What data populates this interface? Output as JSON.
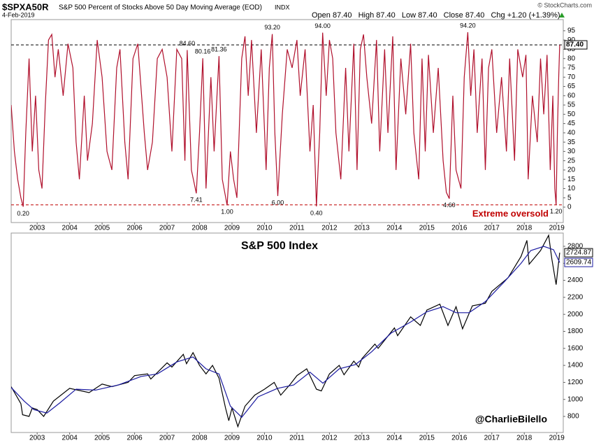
{
  "header": {
    "symbol": "$SPXA50R",
    "description": "S&P 500 Percent of Stocks Above 50 Day Moving Average (EOD)",
    "exchange": "INDX",
    "date": "4-Feb-2019",
    "quote": [
      "Open 87.40",
      "High 87.40",
      "Low 87.40",
      "Close 87.40",
      "Chg +1.20 (+1.39%)"
    ],
    "source": "© StockCharts.com"
  },
  "chart_data": [
    {
      "type": "line",
      "note": "Extreme oversold",
      "xlim": [
        2002.2,
        2019.2
      ],
      "xticks": [
        2003,
        2004,
        2005,
        2006,
        2007,
        2008,
        2009,
        2010,
        2011,
        2012,
        2013,
        2014,
        2015,
        2016,
        2017,
        2018,
        2019
      ],
      "ylim": [
        -8.3,
        101
      ],
      "yticks": [
        0,
        5,
        10,
        15,
        20,
        25,
        30,
        35,
        40,
        45,
        50,
        55,
        60,
        65,
        70,
        75,
        80,
        85,
        90,
        95
      ],
      "series": [
        {
          "name": "$SPXA50R",
          "color": "#b0102c",
          "x": [
            2002.2,
            2002.3,
            2002.4,
            2002.5,
            2002.57,
            2002.65,
            2002.75,
            2002.85,
            2002.95,
            2003.05,
            2003.15,
            2003.25,
            2003.35,
            2003.45,
            2003.55,
            2003.65,
            2003.8,
            2003.95,
            2004.1,
            2004.2,
            2004.3,
            2004.45,
            2004.55,
            2004.7,
            2004.85,
            2005.0,
            2005.15,
            2005.3,
            2005.45,
            2005.55,
            2005.7,
            2005.8,
            2005.95,
            2006.1,
            2006.3,
            2006.4,
            2006.55,
            2006.7,
            2006.85,
            2007.0,
            2007.15,
            2007.3,
            2007.45,
            2007.55,
            2007.62,
            2007.75,
            2007.9,
            2008.0,
            2008.1,
            2008.2,
            2008.35,
            2008.45,
            2008.6,
            2008.7,
            2008.85,
            2008.95,
            2009.05,
            2009.15,
            2009.3,
            2009.4,
            2009.5,
            2009.6,
            2009.75,
            2009.9,
            2010.05,
            2010.15,
            2010.24,
            2010.32,
            2010.41,
            2010.55,
            2010.7,
            2010.85,
            2011.0,
            2011.1,
            2011.25,
            2011.4,
            2011.5,
            2011.6,
            2011.7,
            2011.79,
            2011.9,
            2012.0,
            2012.1,
            2012.2,
            2012.35,
            2012.5,
            2012.6,
            2012.75,
            2012.85,
            2012.95,
            2013.05,
            2013.15,
            2013.3,
            2013.45,
            2013.55,
            2013.7,
            2013.8,
            2013.95,
            2014.05,
            2014.2,
            2014.35,
            2014.5,
            2014.6,
            2014.75,
            2014.85,
            2014.95,
            2015.05,
            2015.2,
            2015.35,
            2015.5,
            2015.6,
            2015.69,
            2015.8,
            2015.9,
            2016.05,
            2016.15,
            2016.26,
            2016.35,
            2016.45,
            2016.55,
            2016.7,
            2016.8,
            2016.9,
            2017.0,
            2017.15,
            2017.3,
            2017.45,
            2017.55,
            2017.7,
            2017.8,
            2017.95,
            2018.05,
            2018.12,
            2018.25,
            2018.4,
            2018.5,
            2018.6,
            2018.7,
            2018.8,
            2018.88,
            2018.94,
            2018.98,
            2019.02,
            2019.06,
            2019.09
          ],
          "values": [
            55,
            30,
            15,
            5,
            0.2,
            40,
            80,
            30,
            60,
            20,
            10,
            55,
            90,
            93,
            70,
            85,
            60,
            88,
            75,
            35,
            15,
            60,
            25,
            45,
            90,
            70,
            30,
            20,
            75,
            85,
            35,
            15,
            80,
            88,
            40,
            20,
            35,
            80,
            85,
            70,
            30,
            85,
            80,
            25,
            84.6,
            20,
            7.41,
            40,
            80.16,
            10,
            70,
            30,
            81.36,
            15,
            1,
            30,
            15,
            5,
            80,
            92,
            60,
            90,
            40,
            85,
            20,
            75,
            93.2,
            40,
            6,
            50,
            85,
            75,
            90,
            60,
            85,
            30,
            55,
            0.4,
            40,
            94,
            60,
            90,
            80,
            40,
            15,
            75,
            30,
            88,
            20,
            85,
            93,
            70,
            45,
            90,
            30,
            85,
            40,
            92,
            20,
            80,
            50,
            88,
            40,
            15,
            80,
            30,
            82,
            40,
            75,
            25,
            8,
            4.6,
            60,
            20,
            10,
            70,
            94.2,
            60,
            85,
            40,
            80,
            20,
            75,
            85,
            40,
            70,
            30,
            80,
            25,
            85,
            70,
            82,
            15,
            60,
            35,
            80,
            50,
            82,
            20,
            60,
            10,
            1.2,
            40,
            70,
            87.4
          ]
        }
      ],
      "references": [
        {
          "value": 87.4,
          "label": "87.40",
          "color": "#000000"
        },
        {
          "value": 1.2,
          "color": "#c00000"
        }
      ],
      "annotations": [
        {
          "x": 2002.57,
          "y": 0.2,
          "label": "0.20"
        },
        {
          "x": 2007.62,
          "y": 84.6,
          "label": "84.60"
        },
        {
          "x": 2008.1,
          "y": 80.16,
          "label": "80.16"
        },
        {
          "x": 2008.6,
          "y": 81.36,
          "label": "81.36"
        },
        {
          "x": 2010.24,
          "y": 93.2,
          "label": "93.20"
        },
        {
          "x": 2011.79,
          "y": 94,
          "label": "94.00"
        },
        {
          "x": 2016.26,
          "y": 94.2,
          "label": "94.20"
        },
        {
          "x": 2007.9,
          "y": 7.41,
          "label": "7.41"
        },
        {
          "x": 2008.85,
          "y": 1,
          "label": "1.00"
        },
        {
          "x": 2010.41,
          "y": 6,
          "label": "6.00"
        },
        {
          "x": 2011.6,
          "y": 0.4,
          "label": "0.40"
        },
        {
          "x": 2015.69,
          "y": 4.6,
          "label": "4.60"
        },
        {
          "x": 2018.98,
          "y": 1.2,
          "label": "1.20"
        }
      ]
    },
    {
      "type": "line",
      "title": "S&P 500 Index",
      "credit": "@CharlieBilello",
      "xlim": [
        2002.2,
        2019.2
      ],
      "xticks": [
        2003,
        2004,
        2005,
        2006,
        2007,
        2008,
        2009,
        2010,
        2011,
        2012,
        2013,
        2014,
        2015,
        2016,
        2017,
        2018,
        2019
      ],
      "ylim": [
        611,
        2956
      ],
      "yticks": [
        800,
        1000,
        1200,
        1400,
        1600,
        1800,
        2000,
        2200,
        2400,
        2600,
        2800
      ],
      "series": [
        {
          "name": "S&P 500",
          "color": "#000000",
          "last_label": "2724.87",
          "x": [
            2002.2,
            2002.5,
            2002.55,
            2002.75,
            2002.85,
            2003.0,
            2003.2,
            2003.5,
            2004.0,
            2004.6,
            2005.0,
            2005.3,
            2005.8,
            2006.0,
            2006.4,
            2006.5,
            2007.0,
            2007.15,
            2007.5,
            2007.6,
            2007.8,
            2008.0,
            2008.2,
            2008.4,
            2008.6,
            2008.8,
            2008.9,
            2009.0,
            2009.18,
            2009.4,
            2009.7,
            2010.0,
            2010.3,
            2010.5,
            2010.8,
            2011.0,
            2011.3,
            2011.6,
            2011.75,
            2012.0,
            2012.3,
            2012.45,
            2012.75,
            2012.9,
            2013.0,
            2013.4,
            2013.5,
            2014.0,
            2014.1,
            2014.5,
            2014.8,
            2015.0,
            2015.4,
            2015.65,
            2015.9,
            2016.1,
            2016.4,
            2016.8,
            2017.0,
            2017.5,
            2017.9,
            2018.08,
            2018.15,
            2018.5,
            2018.75,
            2018.85,
            2018.98,
            2019.09
          ],
          "values": [
            1150,
            950,
            820,
            800,
            900,
            880,
            800,
            980,
            1130,
            1080,
            1180,
            1150,
            1200,
            1280,
            1300,
            1240,
            1430,
            1380,
            1530,
            1420,
            1550,
            1400,
            1300,
            1400,
            1250,
            900,
            750,
            900,
            680,
            920,
            1050,
            1120,
            1200,
            1050,
            1180,
            1280,
            1360,
            1120,
            1100,
            1300,
            1400,
            1290,
            1450,
            1380,
            1480,
            1650,
            1600,
            1840,
            1750,
            1970,
            1870,
            2050,
            2120,
            1870,
            2090,
            1830,
            2100,
            2130,
            2270,
            2430,
            2680,
            2870,
            2590,
            2750,
            2930,
            2650,
            2350,
            2724.87
          ]
        },
        {
          "name": "Moving Average",
          "color": "#1a1aa0",
          "last_label": "2609.74",
          "x": [
            2002.2,
            2002.6,
            2002.9,
            2003.3,
            2003.7,
            2004.2,
            2004.8,
            2005.5,
            2006.2,
            2006.7,
            2007.3,
            2007.8,
            2008.2,
            2008.6,
            2008.95,
            2009.3,
            2009.8,
            2010.4,
            2010.9,
            2011.4,
            2011.8,
            2012.3,
            2012.8,
            2013.3,
            2013.9,
            2014.5,
            2015.0,
            2015.5,
            2015.9,
            2016.3,
            2016.8,
            2017.4,
            2017.9,
            2018.2,
            2018.6,
            2018.9,
            2019.09
          ],
          "values": [
            1140,
            980,
            880,
            840,
            960,
            1120,
            1110,
            1170,
            1270,
            1300,
            1440,
            1500,
            1360,
            1300,
            920,
            790,
            1030,
            1130,
            1170,
            1320,
            1190,
            1360,
            1410,
            1560,
            1780,
            1910,
            2030,
            2090,
            2020,
            2020,
            2150,
            2390,
            2600,
            2750,
            2800,
            2760,
            2609.74
          ]
        }
      ]
    }
  ]
}
